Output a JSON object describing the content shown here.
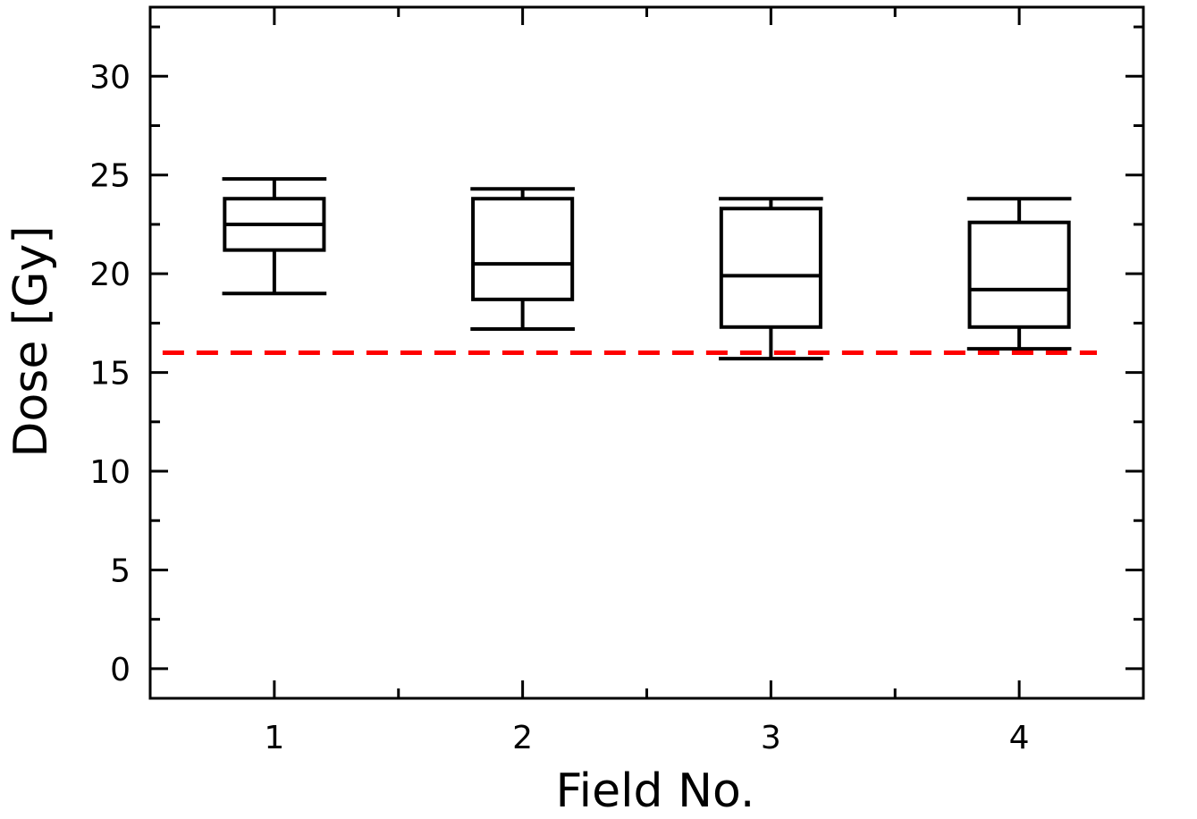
{
  "chart_data": {
    "type": "box",
    "xlabel": "Field No.",
    "ylabel": "Dose [Gy]",
    "xlim": [
      0.5,
      4.5
    ],
    "ylim": [
      -1.5,
      33.5
    ],
    "y_ticks": [
      "0",
      "5",
      "10",
      "15",
      "20",
      "25",
      "30"
    ],
    "y_tick_values": [
      0,
      5,
      10,
      15,
      20,
      25,
      30
    ],
    "x_ticks": [
      "1",
      "2",
      "3",
      "4"
    ],
    "x_tick_values": [
      1,
      2,
      3,
      4
    ],
    "boxes": [
      {
        "field": 1,
        "whisker_low": 19.0,
        "q1": 21.2,
        "median": 22.5,
        "q3": 23.8,
        "whisker_high": 24.8
      },
      {
        "field": 2,
        "whisker_low": 17.2,
        "q1": 18.7,
        "median": 20.5,
        "q3": 23.8,
        "whisker_high": 24.3
      },
      {
        "field": 3,
        "whisker_low": 15.7,
        "q1": 17.3,
        "median": 19.9,
        "q3": 23.3,
        "whisker_high": 23.8
      },
      {
        "field": 4,
        "whisker_low": 16.2,
        "q1": 17.3,
        "median": 19.2,
        "q3": 22.6,
        "whisker_high": 23.8
      }
    ],
    "reference_line": {
      "value": 16.0,
      "color": "#ff0000",
      "style": "dashed"
    },
    "grid": false,
    "colors": {
      "box": "#000000",
      "axis": "#000000"
    }
  }
}
